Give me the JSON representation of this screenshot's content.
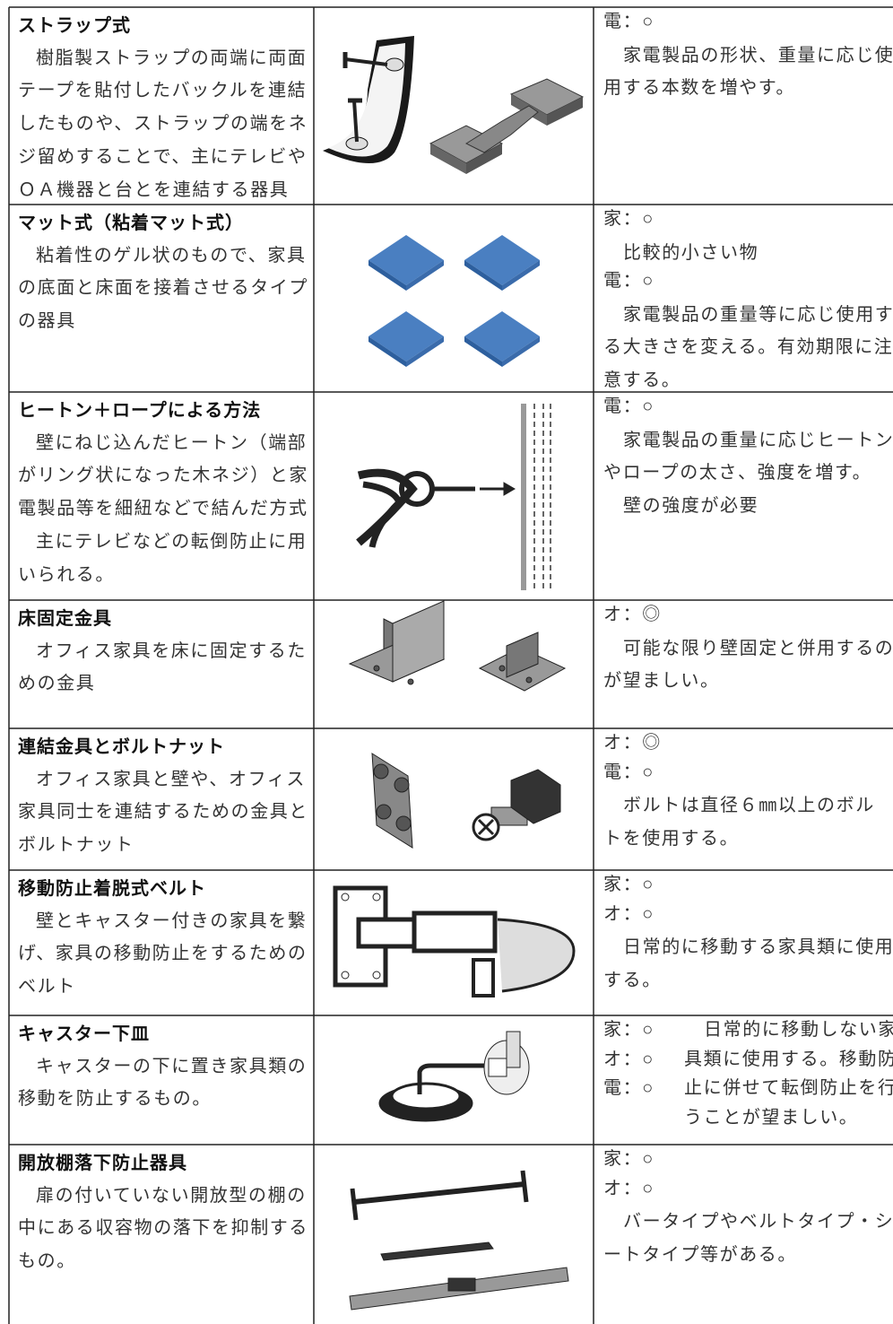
{
  "table": {
    "rows": [
      {
        "title": "ストラップ式",
        "description": [
          [
            "樹脂製ストラップの両端に両面",
            "テープを貼付したバックルを連結",
            "したものや、ストラップの端をネ",
            "ジ留めすることで、主にテレビや",
            "ＯＡ機器と台とを連結する器具"
          ]
        ],
        "notes": [
          {
            "label": "電：○"
          },
          {
            "text": [
              "家電製品の形状、重量に応じ使",
              "用する本数を増やす。"
            ]
          }
        ]
      },
      {
        "title": "マット式（粘着マット式）",
        "description": [
          [
            "粘着性のゲル状のもので、家具",
            "の底面と床面を接着させるタイプ",
            "の器具"
          ]
        ],
        "notes": [
          {
            "label": "家：○"
          },
          {
            "text": [
              "比較的小さい物"
            ]
          },
          {
            "label": "電：○"
          },
          {
            "text": [
              "家電製品の重量等に応じ使用す",
              "る大きさを変える。有効期限に注",
              "意する。"
            ]
          }
        ]
      },
      {
        "title": "ヒートン＋ロープによる方法",
        "description": [
          [
            "壁にねじ込んだヒートン（端部",
            "がリング状になった木ネジ）と家",
            "電製品等を細紐などで結んだ方式"
          ],
          [
            "主にテレビなどの転倒防止に用",
            "いられる。"
          ]
        ],
        "notes": [
          {
            "label": "電：○"
          },
          {
            "text": [
              "家電製品の重量に応じヒートン",
              "やロープの太さ、強度を増す。"
            ]
          },
          {
            "text": [
              "壁の強度が必要"
            ]
          }
        ]
      },
      {
        "title": "床固定金具",
        "description": [
          [
            "オフィス家具を床に固定するた",
            "めの金具"
          ]
        ],
        "notes": [
          {
            "label": "オ：◎"
          },
          {
            "text": [
              "可能な限り壁固定と併用するの",
              "が望ましい。"
            ]
          }
        ]
      },
      {
        "title": "連結金具とボルトナット",
        "description": [
          [
            "オフィス家具と壁や、オフィス",
            "家具同士を連結するための金具と",
            "ボルトナット"
          ]
        ],
        "notes": [
          {
            "label": "オ：◎"
          },
          {
            "label": "電：○"
          },
          {
            "text": [
              "ボルトは直径６㎜以上のボル",
              "トを使用する。"
            ]
          }
        ]
      },
      {
        "title": "移動防止着脱式ベルト",
        "description": [
          [
            "壁とキャスター付きの家具を繋",
            "げ、家具の移動防止をするための",
            "ベルト"
          ]
        ],
        "notes": [
          {
            "label": "家：○"
          },
          {
            "label": "オ：○"
          },
          {
            "text": [
              "日常的に移動する家具類に使用",
              "する。"
            ]
          }
        ]
      },
      {
        "title": "キャスター下皿",
        "description": [
          [
            "キャスターの下に置き家具類の",
            "移動を防止するもの。"
          ]
        ],
        "side_labels": [
          "家：○",
          "オ：○",
          "電：○"
        ],
        "side_text": [
          "日常的に移動しない家",
          "具類に使用する。移動防",
          "止に併せて転倒防止を行",
          "うことが望ましい。"
        ]
      },
      {
        "title": "開放棚落下防止器具",
        "description": [
          [
            "扉の付いていない開放型の棚の",
            "中にある収容物の落下を抑制する",
            "もの。"
          ]
        ],
        "notes": [
          {
            "label": "家：○"
          },
          {
            "label": "オ：○"
          },
          {
            "text": [
              "バータイプやベルトタイプ・シ",
              "ートタイプ等がある。"
            ]
          }
        ]
      }
    ]
  }
}
